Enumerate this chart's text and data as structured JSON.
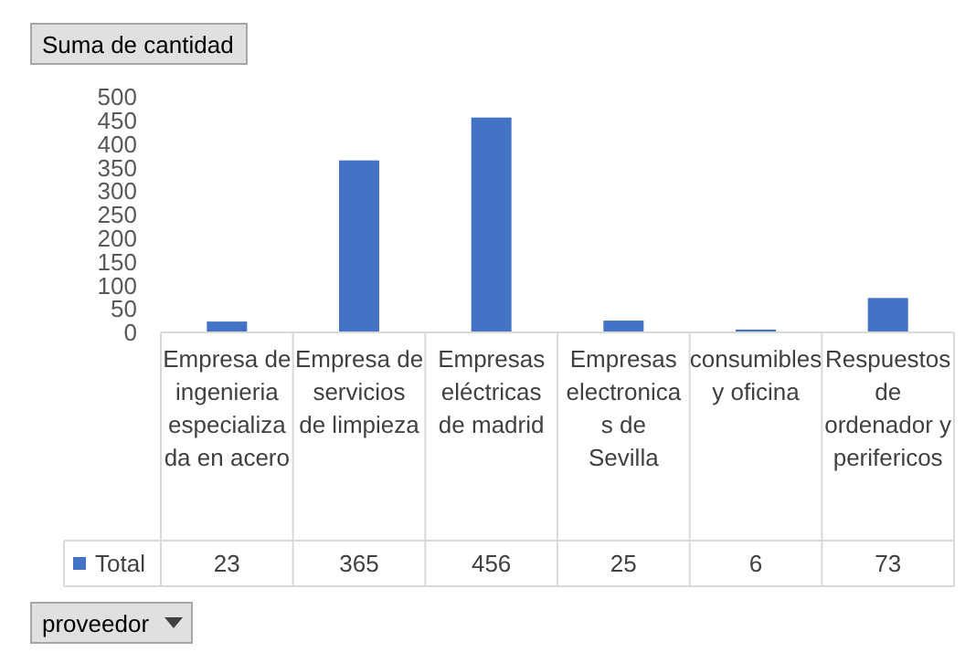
{
  "chart_data": {
    "type": "bar",
    "title": "Suma de cantidad",
    "annotations": [
      "proveedor"
    ],
    "categories": [
      "Empresa de ingenieria especializada en acero",
      "Empresa de servicios de limpieza",
      "Empresas eléctricas de madrid",
      "Empresas electronicas de Sevilla",
      "consumibles y oficina",
      "Respuestos de ordenador y perifericos"
    ],
    "series": [
      {
        "name": "Total",
        "color": "#4472c4",
        "values": [
          23,
          365,
          456,
          25,
          6,
          73
        ]
      }
    ],
    "ylim": [
      0,
      500
    ],
    "yticks": [
      0,
      50,
      100,
      150,
      200,
      250,
      300,
      350,
      400,
      450,
      500
    ],
    "grid": false,
    "legend": "bottom left",
    "data_labels": true
  }
}
